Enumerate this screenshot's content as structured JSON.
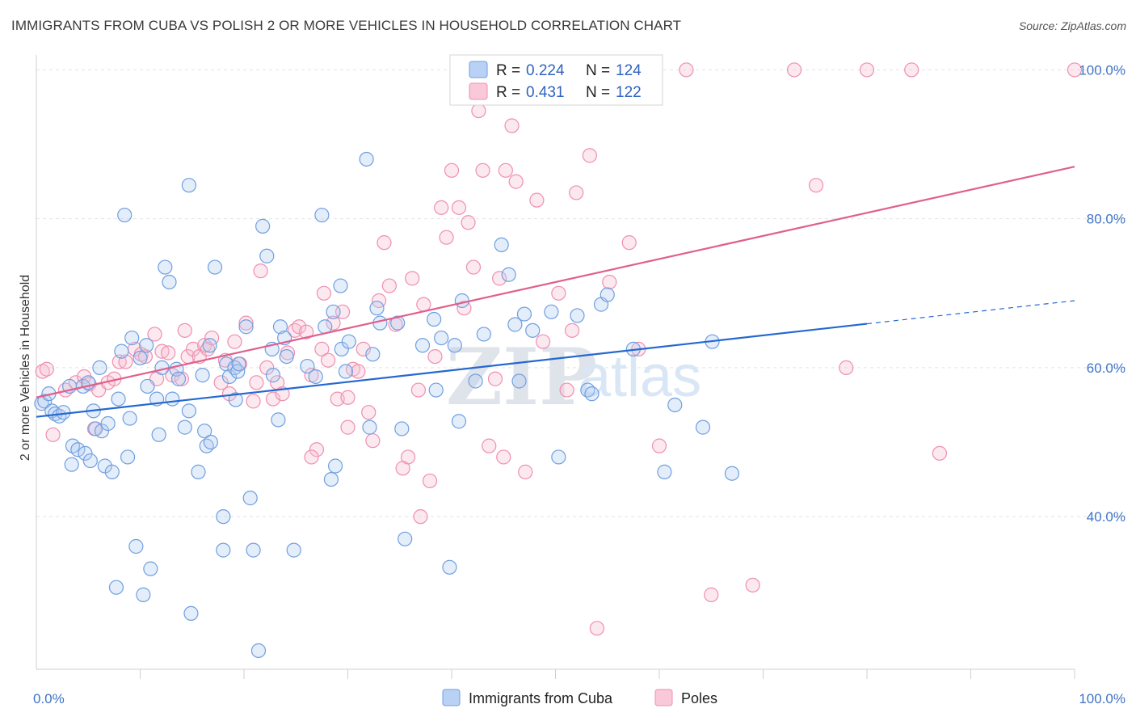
{
  "title": "IMMIGRANTS FROM CUBA VS POLISH 2 OR MORE VEHICLES IN HOUSEHOLD CORRELATION CHART",
  "source": "Source: ZipAtlas.com",
  "watermark": {
    "zip": "ZIP",
    "atlas": "atlas"
  },
  "colors": {
    "blue": "#6f9fe0",
    "blue_line": "#2468d0",
    "pink": "#ef8fb0",
    "pink_line": "#e0608c"
  },
  "legend": {
    "rows": [
      {
        "r_label": "R =",
        "r_value": "0.224",
        "n_label": "N =",
        "n_value": "124"
      },
      {
        "r_label": "R =",
        "r_value": "0.431",
        "n_label": "N =",
        "n_value": "122"
      }
    ]
  },
  "bottom_legend": [
    "Immigrants from Cuba",
    "Poles"
  ],
  "chart_data": {
    "type": "scatter",
    "title": "IMMIGRANTS FROM CUBA VS POLISH 2 OR MORE VEHICLES IN HOUSEHOLD CORRELATION CHART",
    "xlabel": "",
    "ylabel": "2 or more Vehicles in Household",
    "xlim": [
      0,
      100
    ],
    "ylim": [
      19.5,
      102
    ],
    "x_tick_labels": [
      {
        "value": 0,
        "label": "0.0%"
      },
      {
        "value": 100,
        "label": "100.0%"
      }
    ],
    "y_tick_labels": [
      {
        "value": 40,
        "label": "40.0%"
      },
      {
        "value": 60,
        "label": "60.0%"
      },
      {
        "value": 80,
        "label": "80.0%"
      },
      {
        "value": 100,
        "label": "100.0%"
      }
    ],
    "grid": true,
    "legend_position": "top-center",
    "series": [
      {
        "name": "Immigrants from Cuba",
        "color": "#6f9fe0",
        "r": 0.224,
        "n": 124,
        "trend": {
          "x": [
            0,
            80
          ],
          "y": [
            53.4,
            65.9
          ],
          "dashed_to": [
            100,
            69.0
          ]
        },
        "points": [
          [
            0.5,
            55.2
          ],
          [
            0.8,
            55.5
          ],
          [
            1.2,
            56.5
          ],
          [
            1.5,
            54.2
          ],
          [
            1.8,
            53.8
          ],
          [
            2.2,
            53.5
          ],
          [
            2.6,
            54.0
          ],
          [
            3.2,
            57.5
          ],
          [
            3.5,
            49.5
          ],
          [
            3.4,
            47.0
          ],
          [
            4.0,
            49.0
          ],
          [
            4.5,
            57.5
          ],
          [
            4.7,
            48.5
          ],
          [
            5.0,
            58.0
          ],
          [
            5.2,
            47.5
          ],
          [
            5.7,
            51.8
          ],
          [
            5.5,
            54.2
          ],
          [
            6.1,
            60.0
          ],
          [
            6.3,
            51.5
          ],
          [
            6.6,
            46.8
          ],
          [
            6.9,
            52.5
          ],
          [
            7.3,
            46.0
          ],
          [
            7.7,
            30.5
          ],
          [
            7.9,
            55.8
          ],
          [
            8.2,
            62.2
          ],
          [
            8.5,
            80.5
          ],
          [
            8.8,
            48.0
          ],
          [
            9.0,
            53.2
          ],
          [
            9.2,
            64.0
          ],
          [
            9.6,
            36.0
          ],
          [
            10.0,
            61.3
          ],
          [
            10.3,
            29.5
          ],
          [
            10.6,
            63.0
          ],
          [
            10.7,
            57.5
          ],
          [
            11.0,
            33.0
          ],
          [
            11.6,
            55.8
          ],
          [
            11.8,
            51.0
          ],
          [
            12.1,
            60.0
          ],
          [
            12.4,
            73.5
          ],
          [
            12.8,
            71.5
          ],
          [
            13.1,
            55.8
          ],
          [
            13.5,
            59.8
          ],
          [
            13.7,
            58.5
          ],
          [
            14.3,
            52.0
          ],
          [
            14.7,
            84.5
          ],
          [
            14.7,
            54.2
          ],
          [
            14.9,
            27.0
          ],
          [
            15.6,
            46.0
          ],
          [
            16.0,
            59.0
          ],
          [
            16.2,
            51.5
          ],
          [
            16.4,
            49.5
          ],
          [
            16.7,
            63.0
          ],
          [
            16.8,
            50.0
          ],
          [
            17.2,
            73.5
          ],
          [
            18.0,
            35.5
          ],
          [
            18.0,
            40.0
          ],
          [
            18.3,
            60.5
          ],
          [
            18.6,
            58.8
          ],
          [
            19.1,
            60.0
          ],
          [
            19.2,
            55.7
          ],
          [
            19.4,
            59.5
          ],
          [
            19.5,
            60.5
          ],
          [
            20.2,
            65.5
          ],
          [
            20.6,
            42.5
          ],
          [
            20.9,
            35.5
          ],
          [
            21.4,
            22.0
          ],
          [
            21.8,
            79.0
          ],
          [
            22.2,
            75.0
          ],
          [
            22.7,
            62.5
          ],
          [
            22.8,
            59.0
          ],
          [
            23.3,
            53.0
          ],
          [
            23.5,
            65.5
          ],
          [
            23.9,
            64.0
          ],
          [
            24.1,
            61.5
          ],
          [
            24.8,
            35.5
          ],
          [
            26.1,
            60.2
          ],
          [
            26.9,
            58.8
          ],
          [
            27.5,
            80.5
          ],
          [
            27.8,
            65.5
          ],
          [
            28.4,
            45.0
          ],
          [
            28.6,
            67.5
          ],
          [
            28.8,
            46.8
          ],
          [
            29.3,
            71.0
          ],
          [
            29.4,
            62.5
          ],
          [
            29.8,
            59.5
          ],
          [
            30.1,
            63.5
          ],
          [
            31.8,
            88.0
          ],
          [
            32.1,
            52.0
          ],
          [
            32.4,
            61.8
          ],
          [
            32.8,
            68.0
          ],
          [
            33.1,
            66.0
          ],
          [
            34.8,
            66.0
          ],
          [
            35.2,
            51.8
          ],
          [
            35.5,
            37.0
          ],
          [
            37.2,
            63.0
          ],
          [
            38.3,
            66.5
          ],
          [
            38.5,
            57.0
          ],
          [
            39.0,
            64.0
          ],
          [
            39.8,
            33.2
          ],
          [
            40.3,
            63.0
          ],
          [
            40.7,
            52.8
          ],
          [
            41.0,
            69.0
          ],
          [
            42.3,
            58.2
          ],
          [
            43.1,
            64.5
          ],
          [
            44.8,
            76.5
          ],
          [
            45.5,
            72.5
          ],
          [
            46.1,
            65.8
          ],
          [
            46.5,
            58.2
          ],
          [
            47.0,
            67.2
          ],
          [
            47.8,
            65.0
          ],
          [
            49.6,
            67.5
          ],
          [
            50.3,
            48.0
          ],
          [
            52.1,
            67.0
          ],
          [
            53.1,
            57.0
          ],
          [
            53.5,
            56.5
          ],
          [
            54.4,
            68.5
          ],
          [
            55.0,
            69.8
          ],
          [
            57.5,
            62.5
          ],
          [
            60.5,
            46.0
          ],
          [
            61.5,
            55.0
          ],
          [
            64.2,
            52.0
          ],
          [
            65.1,
            63.5
          ],
          [
            67.0,
            45.8
          ]
        ]
      },
      {
        "name": "Poles",
        "color": "#ef8fb0",
        "r": 0.431,
        "n": 122,
        "trend": {
          "x": [
            0,
            100
          ],
          "y": [
            56.0,
            87.0
          ]
        },
        "points": [
          [
            0.6,
            59.5
          ],
          [
            1.0,
            59.8
          ],
          [
            1.6,
            51.0
          ],
          [
            2.8,
            57.0
          ],
          [
            3.8,
            58.0
          ],
          [
            4.6,
            58.8
          ],
          [
            5.1,
            57.8
          ],
          [
            5.6,
            51.8
          ],
          [
            6.0,
            57.0
          ],
          [
            6.9,
            58.0
          ],
          [
            7.5,
            58.5
          ],
          [
            8.0,
            60.8
          ],
          [
            8.6,
            60.8
          ],
          [
            9.5,
            62.5
          ],
          [
            10.1,
            61.8
          ],
          [
            10.5,
            61.5
          ],
          [
            11.4,
            64.5
          ],
          [
            11.6,
            58.5
          ],
          [
            12.1,
            62.2
          ],
          [
            12.7,
            62.0
          ],
          [
            13.1,
            59.0
          ],
          [
            14.0,
            58.5
          ],
          [
            14.3,
            65.0
          ],
          [
            14.6,
            61.5
          ],
          [
            15.1,
            62.5
          ],
          [
            15.7,
            61.5
          ],
          [
            16.2,
            63.0
          ],
          [
            16.5,
            62.5
          ],
          [
            16.9,
            64.0
          ],
          [
            17.8,
            58.0
          ],
          [
            18.2,
            61.0
          ],
          [
            18.6,
            56.5
          ],
          [
            19.1,
            63.5
          ],
          [
            19.6,
            60.5
          ],
          [
            20.2,
            66.0
          ],
          [
            20.9,
            55.5
          ],
          [
            21.2,
            58.0
          ],
          [
            21.6,
            73.0
          ],
          [
            22.2,
            60.0
          ],
          [
            22.8,
            55.8
          ],
          [
            23.2,
            58.0
          ],
          [
            23.7,
            56.5
          ],
          [
            24.2,
            62.0
          ],
          [
            24.9,
            65.0
          ],
          [
            25.3,
            65.5
          ],
          [
            26.0,
            64.8
          ],
          [
            26.5,
            59.0
          ],
          [
            27.0,
            49.0
          ],
          [
            27.5,
            62.5
          ],
          [
            27.7,
            70.0
          ],
          [
            28.1,
            61.0
          ],
          [
            28.6,
            66.0
          ],
          [
            29.0,
            55.8
          ],
          [
            29.5,
            67.5
          ],
          [
            30.0,
            56.0
          ],
          [
            30.5,
            59.8
          ],
          [
            31.0,
            59.5
          ],
          [
            31.5,
            62.5
          ],
          [
            32.0,
            54.0
          ],
          [
            32.4,
            50.2
          ],
          [
            33.0,
            69.0
          ],
          [
            33.5,
            76.8
          ],
          [
            34.0,
            71.0
          ],
          [
            34.6,
            65.8
          ],
          [
            35.3,
            46.5
          ],
          [
            35.8,
            48.0
          ],
          [
            36.2,
            72.0
          ],
          [
            36.8,
            57.0
          ],
          [
            37.3,
            68.5
          ],
          [
            37.9,
            44.8
          ],
          [
            38.4,
            61.5
          ],
          [
            39.0,
            81.5
          ],
          [
            39.5,
            77.5
          ],
          [
            40.0,
            86.5
          ],
          [
            40.7,
            81.5
          ],
          [
            41.2,
            68.0
          ],
          [
            41.6,
            79.5
          ],
          [
            42.1,
            73.5
          ],
          [
            42.6,
            94.5
          ],
          [
            43.0,
            86.5
          ],
          [
            43.6,
            49.5
          ],
          [
            44.2,
            58.5
          ],
          [
            44.6,
            72.0
          ],
          [
            45.2,
            86.5
          ],
          [
            45.8,
            92.5
          ],
          [
            46.2,
            85.0
          ],
          [
            47.1,
            46.0
          ],
          [
            48.2,
            82.5
          ],
          [
            48.8,
            63.5
          ],
          [
            49.6,
            100.0
          ],
          [
            50.3,
            70.0
          ],
          [
            51.1,
            57.0
          ],
          [
            51.6,
            65.0
          ],
          [
            52.0,
            83.5
          ],
          [
            53.3,
            88.5
          ],
          [
            55.2,
            71.5
          ],
          [
            57.1,
            76.8
          ],
          [
            58.0,
            62.5
          ],
          [
            60.0,
            49.5
          ],
          [
            62.6,
            100.0
          ],
          [
            65.0,
            29.5
          ],
          [
            69.0,
            30.8
          ],
          [
            73.0,
            100.0
          ],
          [
            75.1,
            84.5
          ],
          [
            78.0,
            60.0
          ],
          [
            80.0,
            100.0
          ],
          [
            84.3,
            100.0
          ],
          [
            87.0,
            48.5
          ],
          [
            100.0,
            100.0
          ],
          [
            26.5,
            48.0
          ],
          [
            37.0,
            40.0
          ],
          [
            54.0,
            25.0
          ],
          [
            45.0,
            48.0
          ],
          [
            30.0,
            52.0
          ]
        ]
      }
    ]
  }
}
